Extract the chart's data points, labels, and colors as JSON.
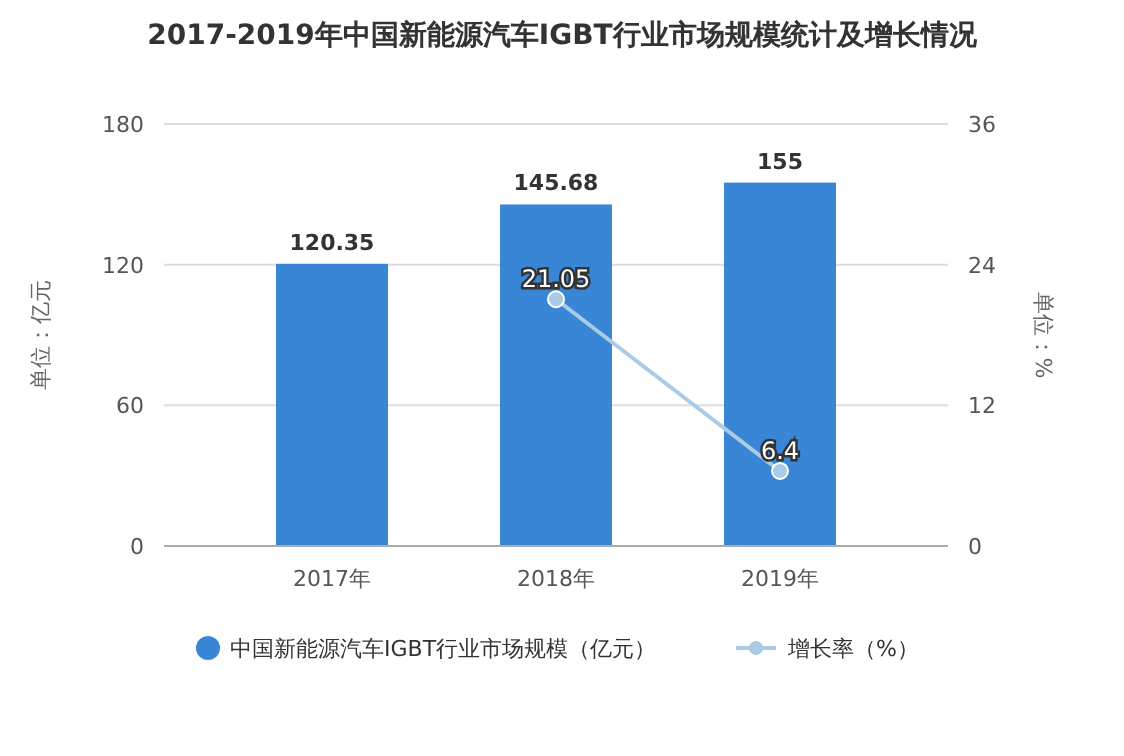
{
  "chart_data": {
    "type": "bar",
    "title": "2017-2019年中国新能源汽车IGBT行业市场规模统计及增长情况",
    "ylabel": "单位：亿元",
    "y2label": "单位：%",
    "categories": [
      "2017年",
      "2018年",
      "2019年"
    ],
    "series": [
      {
        "name": "中国新能源汽车IGBT行业市场规模（亿元）",
        "color": "#3a86d6",
        "values": [
          120.35,
          145.68,
          155
        ]
      },
      {
        "name": "增长率（%）",
        "type": "line",
        "axis": "y2",
        "color": "#a9cbe6",
        "values": [
          null,
          21.05,
          6.4
        ]
      }
    ],
    "ylim": [
      0,
      180
    ],
    "yticks": [
      0,
      60,
      120,
      180
    ],
    "y2lim": [
      0,
      36
    ],
    "y2ticks": [
      0,
      12,
      24,
      36
    ],
    "grid": "y",
    "legend": "bottom",
    "marker": "circle",
    "data_labels": true
  }
}
